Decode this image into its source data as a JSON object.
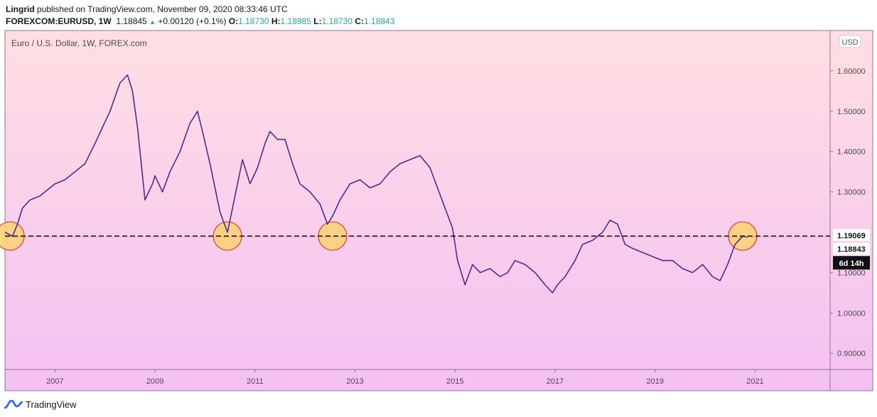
{
  "header": {
    "author": "Lingrid",
    "published_text": "published on TradingView.com, November 09, 2020 08:33:46 UTC",
    "symbol": "FOREXCOM:EURUSD, 1W",
    "price": "1.18845",
    "change": "+0.00120 (+0.1%)",
    "o_label": "O:",
    "o_value": "1.18730",
    "h_label": "H:",
    "h_value": "1.18985",
    "l_label": "L:",
    "l_value": "1.18730",
    "c_label": "C:",
    "c_value": "1.18843"
  },
  "footer": {
    "brand": "TradingView"
  },
  "chart_data": {
    "type": "line",
    "title": "Euro / U.S. Dollar, 1W, FOREX.com",
    "currency_label": "USD",
    "x_ticks": [
      "2007",
      "2009",
      "2011",
      "2013",
      "2015",
      "2017",
      "2019",
      "2021"
    ],
    "y_ticks": [
      "1.60000",
      "1.50000",
      "1.40000",
      "1.30000",
      "1.10000",
      "1.00000",
      "0.90000"
    ],
    "ylim": [
      0.86,
      1.7
    ],
    "xlim": [
      2006.0,
      2022.5
    ],
    "series": [
      {
        "x": [
          2006.0,
          2006.15,
          2006.25,
          2006.35,
          2006.5,
          2006.7,
          2006.9,
          2007.0,
          2007.2,
          2007.4,
          2007.6,
          2007.8,
          2007.95,
          2008.1,
          2008.3,
          2008.45,
          2008.55,
          2008.65,
          2008.8,
          2008.95,
          2009.0,
          2009.15,
          2009.3,
          2009.5,
          2009.7,
          2009.85,
          2009.95,
          2010.1,
          2010.3,
          2010.45,
          2010.6,
          2010.75,
          2010.9,
          2011.05,
          2011.2,
          2011.3,
          2011.45,
          2011.6,
          2011.75,
          2011.9,
          2012.1,
          2012.3,
          2012.45,
          2012.55,
          2012.7,
          2012.9,
          2013.1,
          2013.3,
          2013.5,
          2013.7,
          2013.9,
          2014.1,
          2014.3,
          2014.5,
          2014.65,
          2014.8,
          2014.95,
          2015.05,
          2015.2,
          2015.35,
          2015.5,
          2015.7,
          2015.9,
          2016.05,
          2016.2,
          2016.4,
          2016.6,
          2016.8,
          2016.95,
          2017.05,
          2017.2,
          2017.4,
          2017.55,
          2017.75,
          2017.95,
          2018.1,
          2018.25,
          2018.4,
          2018.55,
          2018.75,
          2018.95,
          2019.15,
          2019.35,
          2019.55,
          2019.75,
          2019.95,
          2020.15,
          2020.3,
          2020.45,
          2020.6,
          2020.75,
          2020.86
        ],
        "values": [
          1.2,
          1.19,
          1.22,
          1.26,
          1.28,
          1.29,
          1.31,
          1.32,
          1.33,
          1.35,
          1.37,
          1.42,
          1.46,
          1.5,
          1.57,
          1.59,
          1.55,
          1.46,
          1.28,
          1.32,
          1.34,
          1.3,
          1.35,
          1.4,
          1.47,
          1.5,
          1.45,
          1.37,
          1.25,
          1.2,
          1.29,
          1.38,
          1.32,
          1.36,
          1.42,
          1.45,
          1.43,
          1.43,
          1.37,
          1.32,
          1.3,
          1.27,
          1.22,
          1.24,
          1.28,
          1.32,
          1.33,
          1.31,
          1.32,
          1.35,
          1.37,
          1.38,
          1.39,
          1.36,
          1.31,
          1.26,
          1.21,
          1.13,
          1.07,
          1.12,
          1.1,
          1.11,
          1.09,
          1.1,
          1.13,
          1.12,
          1.1,
          1.07,
          1.05,
          1.07,
          1.09,
          1.13,
          1.17,
          1.18,
          1.2,
          1.23,
          1.22,
          1.17,
          1.16,
          1.15,
          1.14,
          1.13,
          1.13,
          1.11,
          1.1,
          1.12,
          1.09,
          1.08,
          1.12,
          1.17,
          1.19,
          1.188
        ]
      }
    ],
    "horizontal_line": 1.19069,
    "price_labels": [
      {
        "text": "1.19069",
        "value": 1.19069
      },
      {
        "text": "1.18843",
        "value": 1.18843
      }
    ],
    "countdown": "6d 14h",
    "highlights": [
      2006.1,
      2010.45,
      2012.55,
      2020.75
    ]
  }
}
